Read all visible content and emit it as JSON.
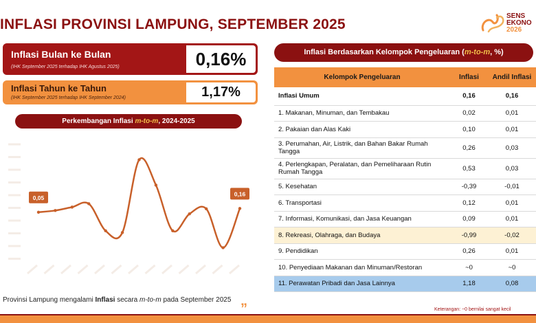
{
  "title": "INFLASI PROVINSI LAMPUNG, SEPTEMBER 2025",
  "logo": {
    "line1": "SENS",
    "line2": "EKONO",
    "line3": "2026",
    "icon": "sensus-swirl-logo"
  },
  "mtm_card": {
    "label": "Inflasi Bulan ke Bulan",
    "sub": "(IHK September 2025 terhadap IHK Agustus 2025)",
    "value": "0,16%"
  },
  "yoy_card": {
    "label": "Inflasi Tahun ke Tahun",
    "sub": "(IHK September 2025 terhadap IHK September 2024)",
    "value": "1,17%"
  },
  "chart_title": {
    "prefix": "Perkembangan Inflasi ",
    "italic": "m-to-m",
    "suffix": ", 2024-2025"
  },
  "chart_data": {
    "type": "line",
    "title": "Perkembangan Inflasi m-to-m, 2024-2025",
    "values": [
      0.05,
      0.1,
      0.2,
      0.3,
      -0.5,
      -0.55,
      1.6,
      0.85,
      -0.5,
      0.0,
      0.15,
      -1.0,
      0.16
    ],
    "data_labels": {
      "0": "0,05",
      "12": "0,16"
    },
    "ylim": [
      -1.6,
      2.3
    ],
    "grid": false,
    "color": "#c8602a"
  },
  "footnote": {
    "prefix": "Provinsi Lampung mengalami ",
    "bold": "Inflasi",
    "middle": " secara ",
    "italic": "m-to-m",
    "suffix": " pada September 2025"
  },
  "table_title": {
    "prefix": "Inflasi Berdasarkan Kelompok Pengeluaran (",
    "italic": "m-to-m",
    "suffix": ", %)"
  },
  "table": {
    "headers": [
      "Kelompok Pengeluaran",
      "Inflasi",
      "Andil Inflasi"
    ],
    "rows": [
      {
        "name": "Inflasi Umum",
        "inflasi": "0,16",
        "andil": "0,16",
        "style": "bold"
      },
      {
        "name": "1.  Makanan, Minuman, dan Tembakau",
        "inflasi": "0,02",
        "andil": "0,01",
        "style": ""
      },
      {
        "name": "2.  Pakaian dan Alas Kaki",
        "inflasi": "0,10",
        "andil": "0,01",
        "style": ""
      },
      {
        "name": "3.  Perumahan, Air, Listrik, dan Bahan Bakar Rumah Tangga",
        "inflasi": "0,26",
        "andil": "0,03",
        "style": "tall"
      },
      {
        "name": "4.  Perlengkapan, Peralatan, dan Pemeliharaan Rutin Rumah Tangga",
        "inflasi": "0,53",
        "andil": "0,03",
        "style": "tall"
      },
      {
        "name": "5.  Kesehatan",
        "inflasi": "-0,39",
        "andil": "-0,01",
        "style": ""
      },
      {
        "name": "6.  Transportasi",
        "inflasi": "0,12",
        "andil": "0,01",
        "style": ""
      },
      {
        "name": "7.  Informasi, Komunikasi, dan Jasa Keuangan",
        "inflasi": "0,09",
        "andil": "0,01",
        "style": ""
      },
      {
        "name": "8.  Rekreasi, Olahraga, dan Budaya",
        "inflasi": "-0,99",
        "andil": "-0,02",
        "style": "yellow"
      },
      {
        "name": "9.  Pendidikan",
        "inflasi": "0,26",
        "andil": "0,01",
        "style": ""
      },
      {
        "name": "10. Penyediaan Makanan dan Minuman/Restoran",
        "inflasi": "~0",
        "andil": "~0",
        "style": ""
      },
      {
        "name": "11. Perawatan Pribadi dan Jasa Lainnya",
        "inflasi": "1,18",
        "andil": "0,08",
        "style": "blue"
      }
    ]
  },
  "note": "Keterangan: ~0 bernilai sangat kecil"
}
